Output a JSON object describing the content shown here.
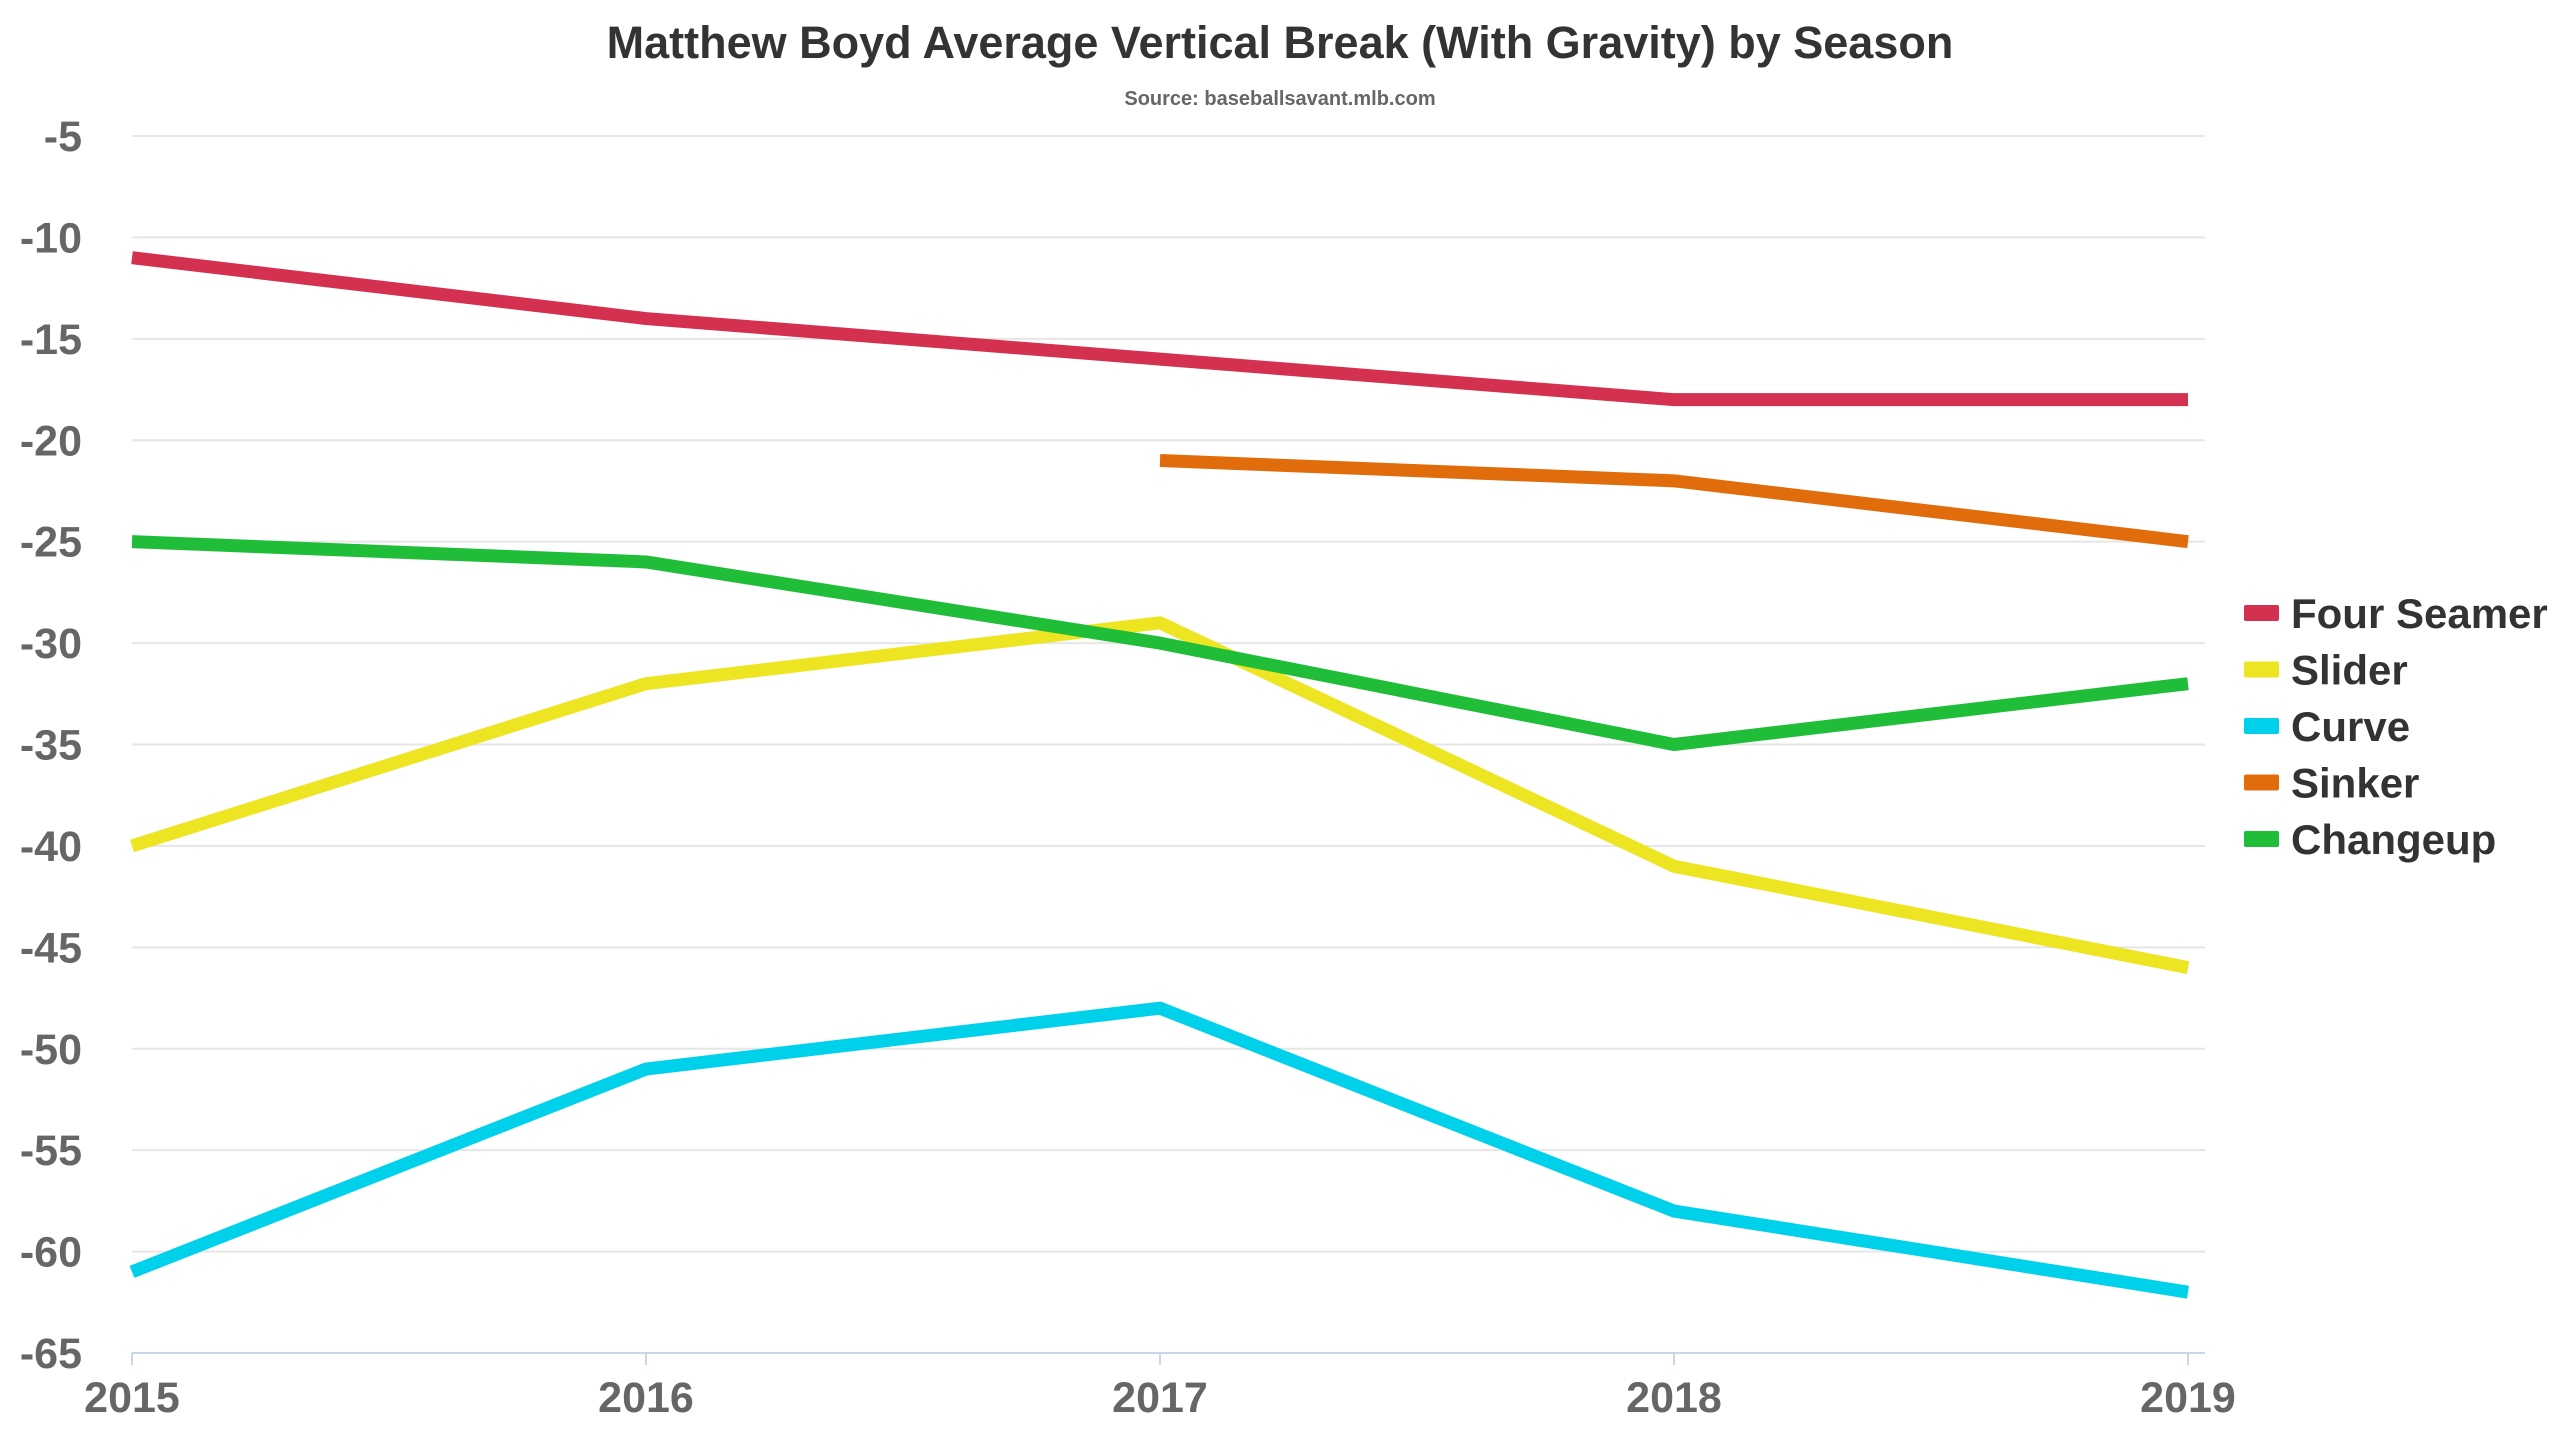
{
  "chart_data": {
    "type": "line",
    "title": "Matthew Boyd Average Vertical Break (With Gravity) by Season",
    "subtitle": "Source: baseballsavant.mlb.com",
    "xlabel": "",
    "ylabel": "",
    "categories": [
      "2015",
      "2016",
      "2017",
      "2018",
      "2019"
    ],
    "ylim": [
      -65,
      -5
    ],
    "yticks": [
      -5,
      -10,
      -15,
      -20,
      -25,
      -30,
      -35,
      -40,
      -45,
      -50,
      -55,
      -60,
      -65
    ],
    "grid": true,
    "legend_position": "right",
    "series": [
      {
        "name": "Four Seamer",
        "color": "#d4304f",
        "values": [
          -11,
          -14,
          -16,
          -18,
          -18
        ]
      },
      {
        "name": "Slider",
        "color": "#ede521",
        "values": [
          -40,
          -32,
          -29,
          -41,
          -46
        ]
      },
      {
        "name": "Curve",
        "color": "#00d1eb",
        "values": [
          -61,
          -51,
          -48,
          -58,
          -62
        ]
      },
      {
        "name": "Sinker",
        "color": "#e06c0b",
        "values": [
          null,
          null,
          -21,
          -22,
          -25
        ]
      },
      {
        "name": "Changeup",
        "color": "#1fbd38",
        "values": [
          -25,
          -26,
          -30,
          -35,
          -32
        ]
      }
    ]
  }
}
